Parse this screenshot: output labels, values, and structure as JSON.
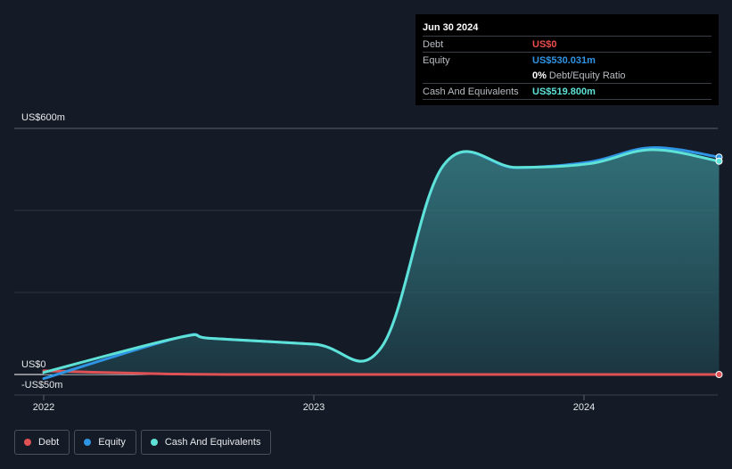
{
  "tooltip": {
    "date": "Jun 30 2024",
    "debt_label": "Debt",
    "debt_value": "US$0",
    "equity_label": "Equity",
    "equity_value": "US$530.031m",
    "ratio_value": "0%",
    "ratio_label": "Debt/Equity Ratio",
    "cash_label": "Cash And Equivalents",
    "cash_value": "US$519.800m"
  },
  "legend": [
    {
      "label": "Debt",
      "color": "#e05155"
    },
    {
      "label": "Equity",
      "color": "#2f94e3"
    },
    {
      "label": "Cash And Equivalents",
      "color": "#5ee2d7"
    }
  ],
  "colors": {
    "debt": "#e05155",
    "equity": "#2f94e3",
    "cash": "#5ee2d7",
    "debt_text": "#ec4d4d",
    "equity_text": "#2f94e3",
    "cash_text": "#5ee2d7"
  },
  "chart_data": {
    "type": "area",
    "y_tick_labels": [
      "US$600m",
      "US$0",
      "-US$50m"
    ],
    "x_tick_labels": [
      "2022",
      "2023",
      "2024"
    ],
    "ylim": [
      -50,
      600
    ],
    "grid": true,
    "legend_position": "bottom-left",
    "series": [
      {
        "name": "Debt",
        "x": [
          2022.0,
          2022.5,
          2023.0,
          2023.5,
          2024.0,
          2024.5
        ],
        "values": [
          9,
          1,
          0,
          0,
          0,
          0
        ]
      },
      {
        "name": "Equity",
        "x": [
          2022.0,
          2022.5,
          2022.62,
          2023.0,
          2023.25,
          2023.48,
          2023.75,
          2024.02,
          2024.25,
          2024.5
        ],
        "values": [
          -10,
          90,
          88,
          74,
          66,
          510,
          504,
          518,
          553,
          530
        ]
      },
      {
        "name": "Cash And Equivalents",
        "x": [
          2022.0,
          2022.5,
          2022.62,
          2023.0,
          2023.25,
          2023.48,
          2023.75,
          2024.02,
          2024.25,
          2024.5
        ],
        "values": [
          5,
          90,
          88,
          74,
          66,
          510,
          505,
          514,
          548,
          520
        ]
      }
    ]
  }
}
